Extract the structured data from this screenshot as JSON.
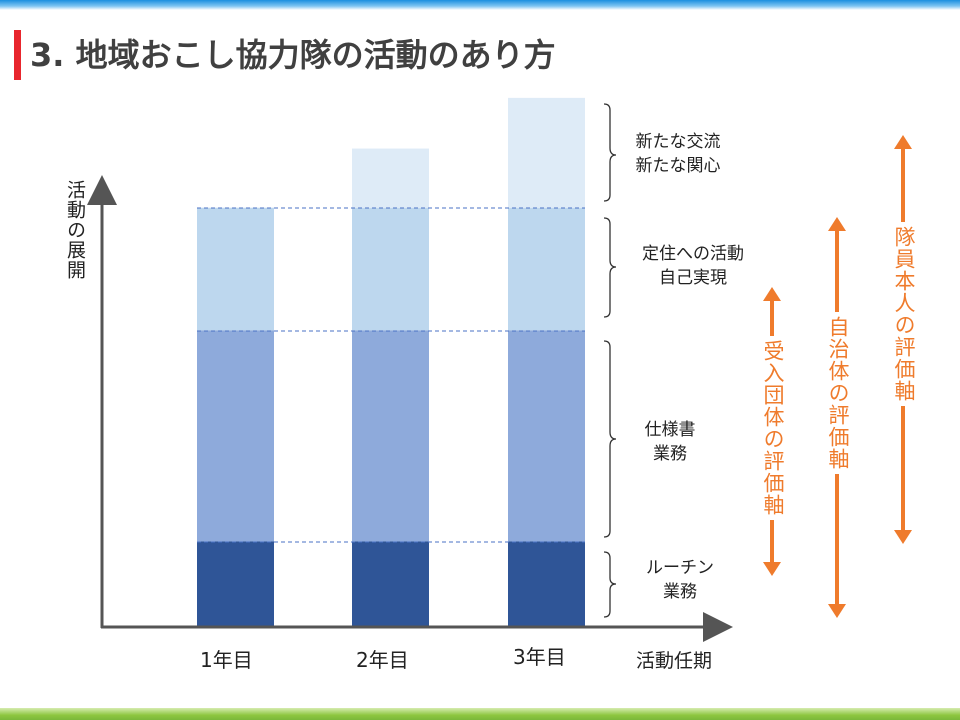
{
  "title": "3. 地域おこし協力隊の活動のあり方",
  "y_axis_label": "活動の展開",
  "x_axis_label": "活動任期",
  "years": [
    "1年目",
    "2年目",
    "3年目"
  ],
  "layers": [
    {
      "lines": [
        "ルーチン",
        "業務"
      ],
      "color": "#2f5597"
    },
    {
      "lines": [
        "仕様書",
        "業務"
      ],
      "color": "#8eaadb"
    },
    {
      "lines": [
        "定住への活動",
        "自己実現"
      ],
      "color": "#bdd7ee"
    },
    {
      "lines": [
        "新たな交流",
        "新たな関心"
      ],
      "color": "#deebf7"
    }
  ],
  "stack_values": [
    {
      "year": "1年目",
      "routine": 1,
      "spec": 2.5,
      "settle": 1.45,
      "new": 0
    },
    {
      "year": "2年目",
      "routine": 1,
      "spec": 2.5,
      "settle": 1.45,
      "new": 0.7
    },
    {
      "year": "3年目",
      "routine": 1,
      "spec": 2.5,
      "settle": 1.45,
      "new": 1.3
    }
  ],
  "evaluation_axes": [
    {
      "label": "受入団体の評価軸",
      "color": "#ef7b2c"
    },
    {
      "label": "自治体の評価軸",
      "color": "#ef7b2c"
    },
    {
      "label": "隊員本人の評価軸",
      "color": "#ef7b2c"
    }
  ]
}
